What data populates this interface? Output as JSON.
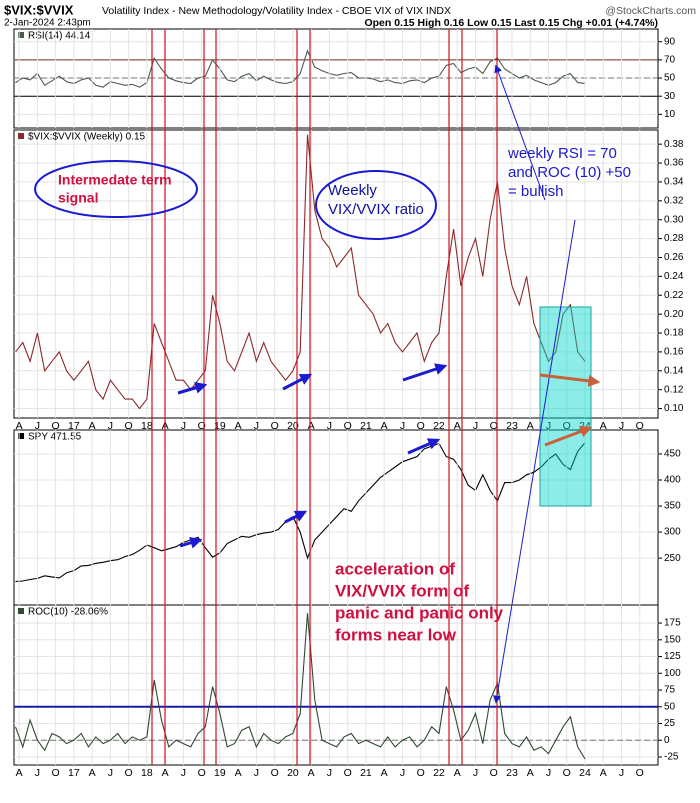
{
  "header": {
    "symbol": "$VIX:$VVIX",
    "description": "Volatility Index - New Methodology/Volatility Index - CBOE VIX of VIX INDX",
    "source": "@StockCharts.com",
    "date": "2-Jan-2024 2:43pm",
    "quote": "Open 0.15 High 0.16 Low 0.15 Last 0.15 Chg +0.01 (+4.74%)"
  },
  "annotations": [
    {
      "lines": [
        "Intermedate term",
        "signal"
      ]
    },
    {
      "lines": [
        "Weekly",
        "VIX/VVIX ratio"
      ]
    },
    {
      "lines": [
        "weekly RSI = 70",
        "and ROC (10) +50",
        "= bullish"
      ]
    },
    {
      "lines": [
        "acceleration of",
        "VIX/VVIX form of",
        "panic and panic only",
        "forms near low"
      ]
    }
  ],
  "chart_data": [
    {
      "type": "line",
      "title": "RSI(14) 44.14",
      "color": "#4a5a4a",
      "x": [
        2016.2,
        2016.3,
        2016.4,
        2016.5,
        2016.6,
        2016.7,
        2016.8,
        2016.9,
        2017,
        2017.1,
        2017.2,
        2017.3,
        2017.4,
        2017.5,
        2017.6,
        2017.7,
        2017.8,
        2017.9,
        2018,
        2018.1,
        2018.2,
        2018.3,
        2018.4,
        2018.5,
        2018.6,
        2018.7,
        2018.8,
        2018.9,
        2019,
        2019.1,
        2019.2,
        2019.3,
        2019.4,
        2019.5,
        2019.6,
        2019.7,
        2019.8,
        2019.9,
        2020,
        2020.1,
        2020.2,
        2020.3,
        2020.4,
        2020.5,
        2020.6,
        2020.7,
        2020.8,
        2020.9,
        2021,
        2021.1,
        2021.2,
        2021.3,
        2021.4,
        2021.5,
        2021.6,
        2021.7,
        2021.8,
        2021.9,
        2022,
        2022.1,
        2022.2,
        2022.3,
        2022.4,
        2022.5,
        2022.6,
        2022.7,
        2022.8,
        2022.9,
        2023,
        2023.1,
        2023.2,
        2023.3,
        2023.4,
        2023.5,
        2023.6,
        2023.7,
        2023.8,
        2023.9,
        2024
      ],
      "values": [
        45,
        50,
        48,
        55,
        42,
        47,
        52,
        46,
        44,
        48,
        50,
        42,
        40,
        46,
        44,
        42,
        43,
        40,
        45,
        72,
        60,
        50,
        47,
        45,
        44,
        50,
        52,
        70,
        60,
        48,
        46,
        52,
        55,
        47,
        52,
        48,
        45,
        44,
        46,
        55,
        80,
        62,
        58,
        55,
        53,
        55,
        56,
        50,
        50,
        49,
        46,
        48,
        45,
        44,
        47,
        48,
        45,
        50,
        52,
        64,
        66,
        56,
        60,
        62,
        55,
        68,
        72,
        60,
        55,
        50,
        53,
        48,
        45,
        42,
        45,
        52,
        55,
        45,
        44.14
      ],
      "xlim": [
        2016.18,
        2025.0
      ],
      "ylim": [
        -5,
        104
      ],
      "yticks": [
        10,
        30,
        50,
        70,
        90
      ],
      "reference_lines": [
        {
          "value": 70,
          "color": "#7a2a2a"
        },
        {
          "value": 50,
          "color": "#777777",
          "dashed": true
        },
        {
          "value": 30,
          "color": "#000000"
        }
      ]
    },
    {
      "type": "line",
      "title": "$VIX:$VVIX (Weekly) 0.15",
      "color": "#8b2a2a",
      "x": [
        2016.2,
        2016.3,
        2016.4,
        2016.5,
        2016.6,
        2016.7,
        2016.8,
        2016.9,
        2017,
        2017.1,
        2017.2,
        2017.3,
        2017.4,
        2017.5,
        2017.6,
        2017.7,
        2017.8,
        2017.9,
        2018,
        2018.1,
        2018.2,
        2018.3,
        2018.4,
        2018.5,
        2018.6,
        2018.7,
        2018.8,
        2018.9,
        2019,
        2019.1,
        2019.2,
        2019.3,
        2019.4,
        2019.5,
        2019.6,
        2019.7,
        2019.8,
        2019.9,
        2020,
        2020.1,
        2020.2,
        2020.3,
        2020.4,
        2020.5,
        2020.6,
        2020.7,
        2020.8,
        2020.9,
        2021,
        2021.1,
        2021.2,
        2021.3,
        2021.4,
        2021.5,
        2021.6,
        2021.7,
        2021.8,
        2021.9,
        2022,
        2022.1,
        2022.2,
        2022.3,
        2022.4,
        2022.5,
        2022.6,
        2022.7,
        2022.8,
        2022.9,
        2023,
        2023.1,
        2023.2,
        2023.3,
        2023.4,
        2023.5,
        2023.6,
        2023.7,
        2023.8,
        2023.9,
        2024
      ],
      "values": [
        0.16,
        0.17,
        0.15,
        0.18,
        0.14,
        0.15,
        0.16,
        0.14,
        0.13,
        0.14,
        0.15,
        0.12,
        0.11,
        0.13,
        0.12,
        0.11,
        0.11,
        0.1,
        0.11,
        0.19,
        0.17,
        0.15,
        0.13,
        0.13,
        0.12,
        0.13,
        0.14,
        0.22,
        0.19,
        0.15,
        0.14,
        0.16,
        0.18,
        0.15,
        0.17,
        0.15,
        0.14,
        0.13,
        0.14,
        0.16,
        0.39,
        0.31,
        0.28,
        0.27,
        0.25,
        0.26,
        0.27,
        0.22,
        0.21,
        0.2,
        0.18,
        0.19,
        0.17,
        0.16,
        0.17,
        0.18,
        0.15,
        0.17,
        0.18,
        0.24,
        0.29,
        0.23,
        0.26,
        0.28,
        0.24,
        0.3,
        0.34,
        0.27,
        0.23,
        0.21,
        0.24,
        0.19,
        0.17,
        0.15,
        0.16,
        0.2,
        0.21,
        0.16,
        0.15
      ],
      "xlim": [
        2016.18,
        2025.0
      ],
      "ylim": [
        0.09,
        0.395
      ],
      "yticks": [
        {
          "value": 0.1,
          "label": "0.10"
        },
        0.12,
        0.14,
        0.16,
        0.18,
        {
          "value": 0.2,
          "label": "0.20"
        },
        0.22,
        0.24,
        0.26,
        0.28,
        {
          "value": 0.3,
          "label": "0.30"
        },
        0.32,
        0.34,
        0.36,
        0.38
      ],
      "xticks": [
        {
          "value": 2016.25,
          "label": "A"
        },
        {
          "value": 2016.5,
          "label": "J"
        },
        {
          "value": 2016.75,
          "label": "O"
        },
        {
          "value": 2017,
          "label": "17"
        },
        {
          "value": 2017.25,
          "label": "A"
        },
        {
          "value": 2017.5,
          "label": "J"
        },
        {
          "value": 2017.75,
          "label": "O"
        },
        {
          "value": 2018,
          "label": "18"
        },
        {
          "value": 2018.25,
          "label": "A"
        },
        {
          "value": 2018.5,
          "label": "J"
        },
        {
          "value": 2018.75,
          "label": "O"
        },
        {
          "value": 2019,
          "label": "19"
        },
        {
          "value": 2019.25,
          "label": "A"
        },
        {
          "value": 2019.5,
          "label": "J"
        },
        {
          "value": 2019.75,
          "label": "O"
        },
        {
          "value": 2020,
          "label": "20"
        },
        {
          "value": 2020.25,
          "label": "A"
        },
        {
          "value": 2020.5,
          "label": "J"
        },
        {
          "value": 2020.75,
          "label": "O"
        },
        {
          "value": 2021,
          "label": "21"
        },
        {
          "value": 2021.25,
          "label": "A"
        },
        {
          "value": 2021.5,
          "label": "J"
        },
        {
          "value": 2021.75,
          "label": "O"
        },
        {
          "value": 2022,
          "label": "22"
        },
        {
          "value": 2022.25,
          "label": "A"
        },
        {
          "value": 2022.5,
          "label": "J"
        },
        {
          "value": 2022.75,
          "label": "O"
        },
        {
          "value": 2023,
          "label": "23"
        },
        {
          "value": 2023.25,
          "label": "A"
        },
        {
          "value": 2023.5,
          "label": "J"
        },
        {
          "value": 2023.75,
          "label": "O"
        },
        {
          "value": 2024,
          "label": "24"
        },
        {
          "value": 2024.25,
          "label": "A"
        },
        {
          "value": 2024.5,
          "label": "J"
        },
        {
          "value": 2024.75,
          "label": "O"
        }
      ]
    },
    {
      "type": "line",
      "title": "SPY 471.55",
      "color": "#000000",
      "x": [
        2016.2,
        2016.3,
        2016.4,
        2016.5,
        2016.6,
        2016.7,
        2016.8,
        2016.9,
        2017,
        2017.1,
        2017.2,
        2017.3,
        2017.4,
        2017.5,
        2017.6,
        2017.7,
        2017.8,
        2017.9,
        2018,
        2018.1,
        2018.2,
        2018.3,
        2018.4,
        2018.5,
        2018.6,
        2018.7,
        2018.8,
        2018.9,
        2019,
        2019.1,
        2019.2,
        2019.3,
        2019.4,
        2019.5,
        2019.6,
        2019.7,
        2019.8,
        2019.9,
        2020,
        2020.1,
        2020.2,
        2020.3,
        2020.4,
        2020.5,
        2020.6,
        2020.7,
        2020.8,
        2020.9,
        2021,
        2021.1,
        2021.2,
        2021.3,
        2021.4,
        2021.5,
        2021.6,
        2021.7,
        2021.8,
        2021.9,
        2022,
        2022.1,
        2022.2,
        2022.3,
        2022.4,
        2022.5,
        2022.6,
        2022.7,
        2022.8,
        2022.9,
        2023,
        2023.1,
        2023.2,
        2023.3,
        2023.4,
        2023.5,
        2023.6,
        2023.7,
        2023.8,
        2023.9,
        2024
      ],
      "values": [
        205,
        206,
        209,
        211,
        216,
        214,
        212,
        222,
        226,
        235,
        236,
        240,
        242,
        245,
        247,
        253,
        257,
        265,
        275,
        270,
        264,
        268,
        272,
        280,
        285,
        290,
        270,
        252,
        260,
        278,
        285,
        292,
        290,
        295,
        298,
        300,
        305,
        320,
        330,
        300,
        250,
        285,
        300,
        315,
        330,
        345,
        340,
        360,
        375,
        390,
        405,
        415,
        425,
        435,
        440,
        445,
        460,
        465,
        470,
        445,
        440,
        420,
        390,
        380,
        410,
        380,
        360,
        395,
        395,
        400,
        410,
        415,
        425,
        440,
        450,
        430,
        420,
        455,
        471.55
      ],
      "xlim": [
        2016.18,
        2025.0
      ],
      "ylim": [
        160,
        496
      ],
      "yticks": [
        250,
        300,
        350,
        400,
        450
      ]
    },
    {
      "type": "line",
      "title": "ROC(10) -28.06%",
      "color": "#2f4a2f",
      "x": [
        2016.2,
        2016.3,
        2016.4,
        2016.5,
        2016.6,
        2016.7,
        2016.8,
        2016.9,
        2017,
        2017.1,
        2017.2,
        2017.3,
        2017.4,
        2017.5,
        2017.6,
        2017.7,
        2017.8,
        2017.9,
        2018,
        2018.1,
        2018.2,
        2018.3,
        2018.4,
        2018.5,
        2018.6,
        2018.7,
        2018.8,
        2018.9,
        2019,
        2019.1,
        2019.2,
        2019.3,
        2019.4,
        2019.5,
        2019.6,
        2019.7,
        2019.8,
        2019.9,
        2020,
        2020.1,
        2020.2,
        2020.3,
        2020.4,
        2020.5,
        2020.6,
        2020.7,
        2020.8,
        2020.9,
        2021,
        2021.1,
        2021.2,
        2021.3,
        2021.4,
        2021.5,
        2021.6,
        2021.7,
        2021.8,
        2021.9,
        2022,
        2022.1,
        2022.2,
        2022.3,
        2022.4,
        2022.5,
        2022.6,
        2022.7,
        2022.8,
        2022.9,
        2023,
        2023.1,
        2023.2,
        2023.3,
        2023.4,
        2023.5,
        2023.6,
        2023.7,
        2023.8,
        2023.9,
        2024
      ],
      "values": [
        20,
        -10,
        30,
        0,
        -15,
        10,
        5,
        -5,
        0,
        10,
        -10,
        5,
        -5,
        0,
        10,
        -5,
        5,
        0,
        5,
        90,
        30,
        -10,
        0,
        -5,
        -10,
        10,
        20,
        80,
        40,
        -10,
        -5,
        15,
        20,
        -10,
        10,
        0,
        -5,
        5,
        10,
        40,
        190,
        60,
        0,
        -5,
        -10,
        5,
        10,
        -5,
        0,
        -5,
        -10,
        5,
        -10,
        0,
        5,
        -10,
        0,
        20,
        10,
        80,
        45,
        0,
        15,
        40,
        -5,
        60,
        85,
        10,
        -5,
        -10,
        5,
        -15,
        -10,
        -20,
        0,
        20,
        35,
        -10,
        -28.06
      ],
      "xlim": [
        2016.18,
        2025.0
      ],
      "ylim": [
        -37,
        202
      ],
      "yticks": [
        -25,
        0,
        25,
        50,
        75,
        100,
        125,
        150,
        175
      ],
      "reference_lines": [
        {
          "value": 50,
          "color": "#1a1aaa",
          "width": 2
        },
        {
          "value": 0,
          "color": "#777777",
          "dashed": true
        }
      ],
      "xticks": [
        {
          "value": 2016.25,
          "label": "A"
        },
        {
          "value": 2016.5,
          "label": "J"
        },
        {
          "value": 2016.75,
          "label": "O"
        },
        {
          "value": 2017,
          "label": "17"
        },
        {
          "value": 2017.25,
          "label": "A"
        },
        {
          "value": 2017.5,
          "label": "J"
        },
        {
          "value": 2017.75,
          "label": "O"
        },
        {
          "value": 2018,
          "label": "18"
        },
        {
          "value": 2018.25,
          "label": "A"
        },
        {
          "value": 2018.5,
          "label": "J"
        },
        {
          "value": 2018.75,
          "label": "O"
        },
        {
          "value": 2019,
          "label": "19"
        },
        {
          "value": 2019.25,
          "label": "A"
        },
        {
          "value": 2019.5,
          "label": "J"
        },
        {
          "value": 2019.75,
          "label": "O"
        },
        {
          "value": 2020,
          "label": "20"
        },
        {
          "value": 2020.25,
          "label": "A"
        },
        {
          "value": 2020.5,
          "label": "J"
        },
        {
          "value": 2020.75,
          "label": "O"
        },
        {
          "value": 2021,
          "label": "21"
        },
        {
          "value": 2021.25,
          "label": "A"
        },
        {
          "value": 2021.5,
          "label": "J"
        },
        {
          "value": 2021.75,
          "label": "O"
        },
        {
          "value": 2022,
          "label": "22"
        },
        {
          "value": 2022.25,
          "label": "A"
        },
        {
          "value": 2022.5,
          "label": "J"
        },
        {
          "value": 2022.75,
          "label": "O"
        },
        {
          "value": 2023,
          "label": "23"
        },
        {
          "value": 2023.25,
          "label": "A"
        },
        {
          "value": 2023.5,
          "label": "J"
        },
        {
          "value": 2023.75,
          "label": "O"
        },
        {
          "value": 2024,
          "label": "24"
        },
        {
          "value": 2024.25,
          "label": "A"
        },
        {
          "value": 2024.5,
          "label": "J"
        },
        {
          "value": 2024.75,
          "label": "O"
        }
      ]
    }
  ]
}
